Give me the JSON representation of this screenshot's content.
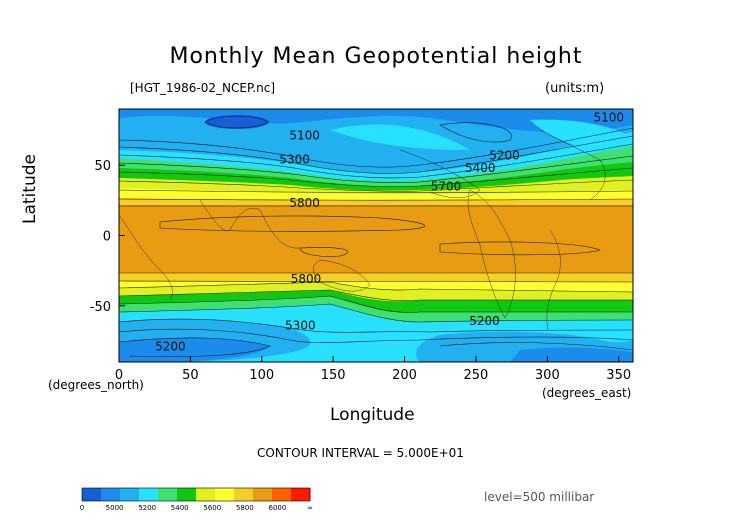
{
  "chart_data": {
    "type": "contour",
    "title": "Monthly Mean Geopotential height",
    "file_label": "[HGT_1986-02_NCEP.nc]",
    "units_label": "(units:m)",
    "xlabel": "Longitude",
    "ylabel": "Latitude",
    "xlim": [
      0,
      360
    ],
    "ylim": [
      -90,
      90
    ],
    "x_ticks": [
      0,
      50,
      100,
      150,
      200,
      250,
      300,
      350
    ],
    "y_ticks": [
      50,
      0,
      -50
    ],
    "x_unit_label": "(degrees_east)",
    "y_unit_label": "(degrees_north)",
    "contour_interval_label": "CONTOUR INTERVAL = 5.000E+01",
    "level_label": "level=500 millibar",
    "contour_labels": [
      {
        "text": "5100",
        "lon": 130,
        "lat": 71
      },
      {
        "text": "5100",
        "lon": 343,
        "lat": 84
      },
      {
        "text": "5200",
        "lon": 270,
        "lat": 57
      },
      {
        "text": "5400",
        "lon": 253,
        "lat": 48
      },
      {
        "text": "5700",
        "lon": 229,
        "lat": 35
      },
      {
        "text": "5300",
        "lon": 123,
        "lat": 54
      },
      {
        "text": "5800",
        "lon": 130,
        "lat": 23
      },
      {
        "text": "5800",
        "lon": 131,
        "lat": -31
      },
      {
        "text": "5300",
        "lon": 127,
        "lat": -64
      },
      {
        "text": "5200",
        "lon": 256,
        "lat": -61
      },
      {
        "text": "5200",
        "lon": 36,
        "lat": -79
      }
    ],
    "colorbar": {
      "labels": [
        "0",
        "5000",
        "5200",
        "5400",
        "5600",
        "5800",
        "6000",
        "∞"
      ],
      "colors": [
        "#1560d8",
        "#1c8cec",
        "#22b0f0",
        "#28e0ff",
        "#40e070",
        "#10c810",
        "#e0f020",
        "#ffff30",
        "#f4d024",
        "#e89c14",
        "#ff6000",
        "#ff1a00"
      ]
    }
  }
}
